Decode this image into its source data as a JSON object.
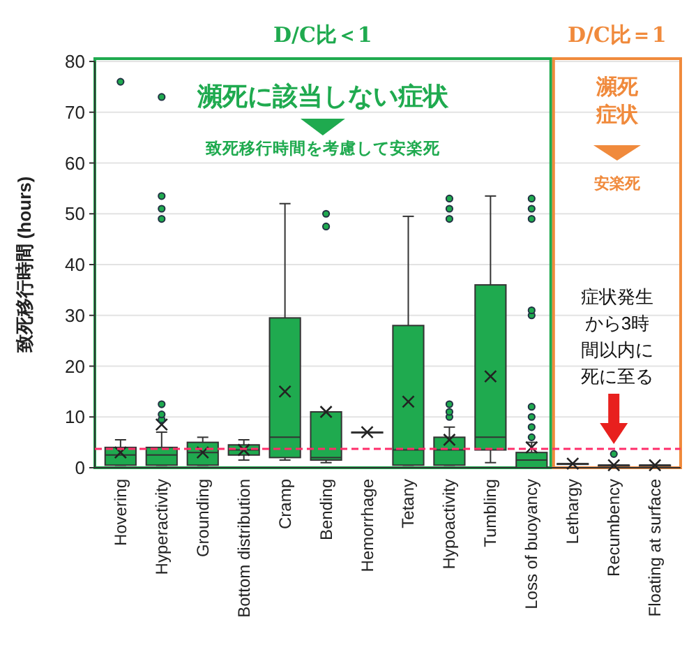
{
  "chart_data": {
    "type": "box",
    "ylabel": "致死移行時間 (hours)",
    "categories": [
      "Hovering",
      "Hyperactivity",
      "Grounding",
      "Bottom distribution",
      "Cramp",
      "Bending",
      "Hemorrhage",
      "Tetany",
      "Hypoactivity",
      "Tumbling",
      "Loss of buoyancy",
      "Lethargy",
      "Recumbency",
      "Floating at surface"
    ],
    "color": "#1faa4f",
    "boxes": [
      {
        "low": 0.5,
        "q1": 0.5,
        "median": 2.5,
        "q3": 4,
        "high": 5.5,
        "mean": 3,
        "outliers": [
          76
        ]
      },
      {
        "low": 0.5,
        "q1": 0.5,
        "median": 2.5,
        "q3": 4,
        "high": 7,
        "mean": 8.5,
        "outliers": [
          9.5,
          10.5,
          12.5,
          49,
          51,
          53.5,
          73
        ]
      },
      {
        "low": 0.5,
        "q1": 0.5,
        "median": 3,
        "q3": 5,
        "high": 6,
        "mean": 3
      },
      {
        "low": 1.5,
        "q1": 2.5,
        "median": 3.5,
        "q3": 4.5,
        "high": 5.5,
        "mean": 3.5
      },
      {
        "low": 1.5,
        "q1": 2,
        "median": 6,
        "q3": 29.5,
        "high": 52,
        "mean": 15
      },
      {
        "low": 1,
        "q1": 1.5,
        "median": 2,
        "q3": 11,
        "high": 11,
        "mean": 11,
        "outliers": [
          47.5,
          50
        ]
      },
      {
        "low": 7,
        "q1": 7,
        "median": 7,
        "q3": 7,
        "high": 7,
        "mean": 7
      },
      {
        "low": 0.5,
        "q1": 0.5,
        "median": 3.5,
        "q3": 28,
        "high": 49.5,
        "mean": 13
      },
      {
        "low": 0.5,
        "q1": 0.5,
        "median": 3.5,
        "q3": 6,
        "high": 8,
        "mean": 5.5,
        "outliers": [
          10,
          11,
          12.5,
          49,
          51,
          53
        ]
      },
      {
        "low": 1,
        "q1": 3.5,
        "median": 6,
        "q3": 36,
        "high": 53.5,
        "mean": 18
      },
      {
        "low": 0,
        "q1": 0,
        "median": 1.5,
        "q3": 3,
        "high": 5,
        "mean": 4,
        "outliers": [
          6,
          8,
          10,
          12,
          30,
          31,
          49,
          51,
          53
        ]
      },
      {
        "low": 0.8,
        "q1": 0.8,
        "median": 0.8,
        "q3": 0.8,
        "high": 0.8,
        "mean": 0.8
      },
      {
        "low": 0.5,
        "q1": 0.5,
        "median": 0.5,
        "q3": 0.5,
        "high": 0.5,
        "mean": 0.5,
        "outliers": [
          2.7
        ]
      },
      {
        "low": 0.5,
        "q1": 0.5,
        "median": 0.5,
        "q3": 0.5,
        "high": 0.5,
        "mean": 0.5
      }
    ],
    "ylim": [
      0,
      80
    ],
    "yticks": [
      0,
      10,
      20,
      30,
      40,
      50,
      60,
      70,
      80
    ],
    "grid": "y",
    "ref_lines": [
      {
        "axis": "y",
        "value": 3.7,
        "color": "#ff2d6a",
        "line_style": "dashed"
      }
    ],
    "annotations": [
      "D/C比＜1",
      "瀕死に該当しない症状",
      "致死移行時間を考慮して安楽死",
      "D/C比＝1",
      "瀕死症状",
      "安楽死",
      "症状発生から3時間以内に死に至る"
    ]
  }
}
